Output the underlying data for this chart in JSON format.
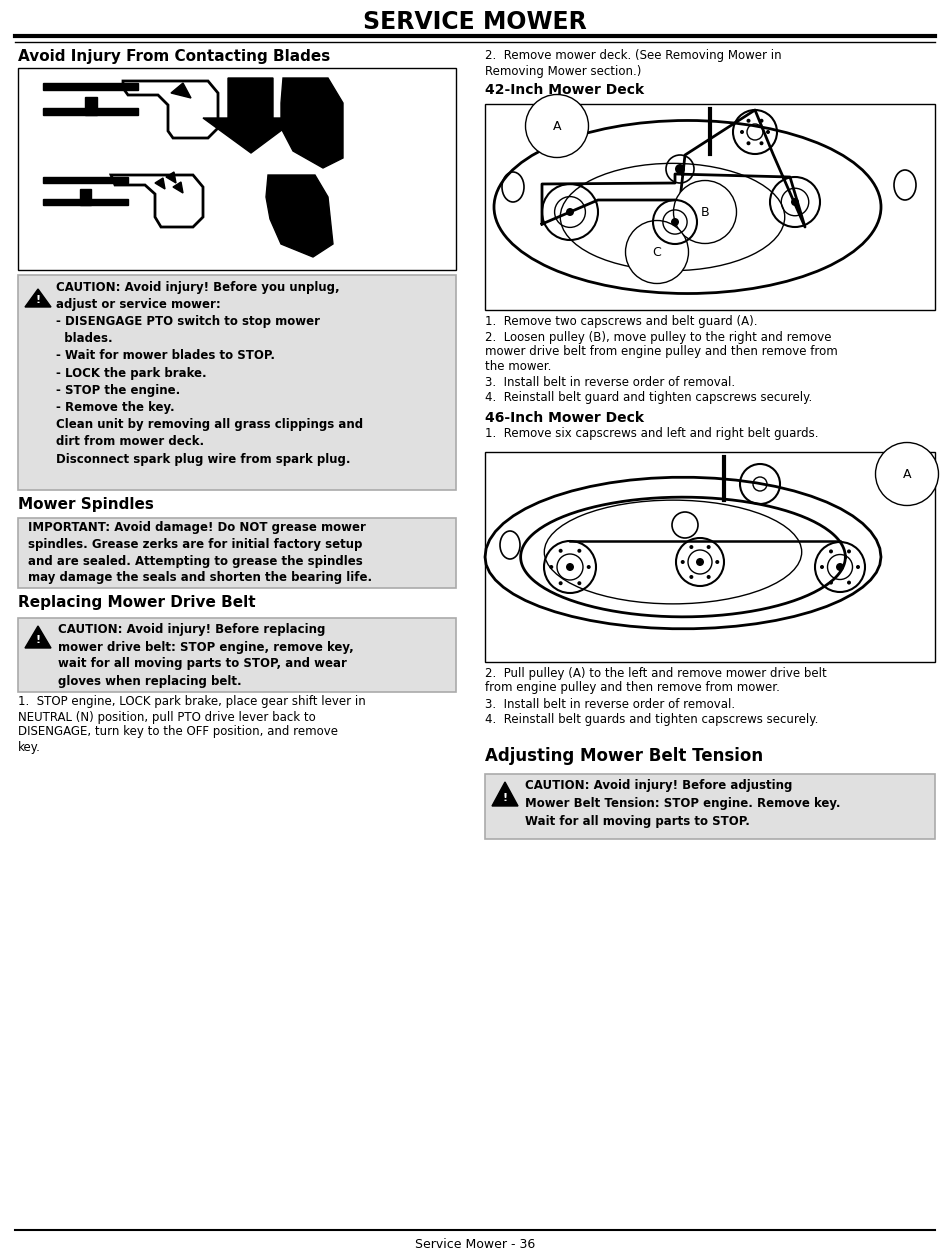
{
  "title": "SERVICE MOWER",
  "footer": "Service Mower - 36",
  "bg_color": "#ffffff",
  "left_col": {
    "section1_title": "Avoid Injury From Contacting Blades",
    "caution_box1_lines": [
      "CAUTION: Avoid injury! Before you unplug,",
      "adjust or service mower:",
      "- DISENGAGE PTO switch to stop mower",
      "  blades.",
      "- Wait for mower blades to STOP.",
      "- LOCK the park brake.",
      "- STOP the engine.",
      "- Remove the key.",
      "Clean unit by removing all grass clippings and",
      "dirt from mower deck.",
      "Disconnect spark plug wire from spark plug."
    ],
    "section2_title": "Mower Spindles",
    "important_box_lines": [
      "IMPORTANT: Avoid damage! Do NOT grease mower",
      "spindles. Grease zerks are for initial factory setup",
      "and are sealed. Attempting to grease the spindles",
      "may damage the seals and shorten the bearing life."
    ],
    "section3_title": "Replacing Mower Drive Belt",
    "caution_box2_lines": [
      "CAUTION: Avoid injury! Before replacing",
      "mower drive belt: STOP engine, remove key,",
      "wait for all moving parts to STOP, and wear",
      "gloves when replacing belt."
    ],
    "para1_lines": [
      "1.  STOP engine, LOCK park brake, place gear shift lever in",
      "NEUTRAL (N) position, pull PTO drive lever back to",
      "DISENGAGE, turn key to the OFF position, and remove",
      "key."
    ]
  },
  "right_col": {
    "para_top_lines": [
      "2.  Remove mower deck. (See Removing Mower in",
      "Removing Mower section.)"
    ],
    "section42_title": "42-Inch Mower Deck",
    "steps_42": [
      [
        "1.  Remove two capscrews and belt guard (A)."
      ],
      [
        "2.  Loosen pulley (B), move pulley to the right and remove",
        "mower drive belt from engine pulley and then remove from",
        "the mower."
      ],
      [
        "3.  Install belt in reverse order of removal."
      ],
      [
        "4.  Reinstall belt guard and tighten capscrews securely."
      ]
    ],
    "section46_title": "46-Inch Mower Deck",
    "steps_46_pre": [
      "1.  Remove six capscrews and left and right belt guards."
    ],
    "steps_46_post": [
      [
        "2.  Pull pulley (A) to the left and remove mower drive belt",
        "from engine pulley and then remove from mower."
      ],
      [
        "3.  Install belt in reverse order of removal."
      ],
      [
        "4.  Reinstall belt guards and tighten capscrews securely."
      ]
    ],
    "section_tension_title": "Adjusting Mower Belt Tension",
    "caution_box3_lines": [
      "CAUTION: Avoid injury! Before adjusting",
      "Mower Belt Tension: STOP engine. Remove key.",
      "Wait for all moving parts to STOP."
    ]
  }
}
